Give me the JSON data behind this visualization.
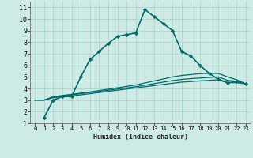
{
  "title": "",
  "xlabel": "Humidex (Indice chaleur)",
  "background_color": "#ceeae4",
  "grid_color": "#aacfca",
  "line_color": "#006b6b",
  "xlim": [
    -0.5,
    23.5
  ],
  "ylim": [
    1,
    11.5
  ],
  "xticks": [
    0,
    1,
    2,
    3,
    4,
    5,
    6,
    7,
    8,
    9,
    10,
    11,
    12,
    13,
    14,
    15,
    16,
    17,
    18,
    19,
    20,
    21,
    22,
    23
  ],
  "yticks": [
    1,
    2,
    3,
    4,
    5,
    6,
    7,
    8,
    9,
    10,
    11
  ],
  "curves": [
    {
      "x": [
        1,
        2,
        3,
        4,
        5,
        6,
        7,
        8,
        9,
        10,
        11,
        12,
        13,
        14,
        15,
        16,
        17,
        18,
        19,
        20,
        21,
        22,
        23
      ],
      "y": [
        1.5,
        3.0,
        3.3,
        3.3,
        5.0,
        6.5,
        7.2,
        7.9,
        8.5,
        8.65,
        8.8,
        10.8,
        10.2,
        9.6,
        9.0,
        7.2,
        6.8,
        6.0,
        5.3,
        4.8,
        4.5,
        4.6,
        4.4
      ],
      "marker": "D",
      "markersize": 2.2,
      "linewidth": 1.2
    },
    {
      "x": [
        0,
        1,
        2,
        3,
        4,
        5,
        6,
        7,
        8,
        9,
        10,
        11,
        12,
        13,
        14,
        15,
        16,
        17,
        18,
        19,
        20,
        21,
        22,
        23
      ],
      "y": [
        3.0,
        3.0,
        3.2,
        3.3,
        3.35,
        3.45,
        3.55,
        3.65,
        3.75,
        3.85,
        3.95,
        4.05,
        4.15,
        4.25,
        4.35,
        4.45,
        4.55,
        4.6,
        4.65,
        4.7,
        4.75,
        4.5,
        4.5,
        4.4
      ],
      "marker": null,
      "markersize": 0,
      "linewidth": 0.9
    },
    {
      "x": [
        0,
        1,
        2,
        3,
        4,
        5,
        6,
        7,
        8,
        9,
        10,
        11,
        12,
        13,
        14,
        15,
        16,
        17,
        18,
        19,
        20,
        21,
        22,
        23
      ],
      "y": [
        3.0,
        3.0,
        3.25,
        3.35,
        3.45,
        3.55,
        3.65,
        3.75,
        3.85,
        3.95,
        4.05,
        4.15,
        4.28,
        4.42,
        4.55,
        4.68,
        4.78,
        4.85,
        4.9,
        4.95,
        5.0,
        4.7,
        4.62,
        4.4
      ],
      "marker": null,
      "markersize": 0,
      "linewidth": 0.9
    },
    {
      "x": [
        0,
        1,
        2,
        3,
        4,
        5,
        6,
        7,
        8,
        9,
        10,
        11,
        12,
        13,
        14,
        15,
        16,
        17,
        18,
        19,
        20,
        21,
        22,
        23
      ],
      "y": [
        3.0,
        3.0,
        3.3,
        3.4,
        3.5,
        3.6,
        3.7,
        3.82,
        3.94,
        4.06,
        4.18,
        4.3,
        4.48,
        4.65,
        4.82,
        5.0,
        5.12,
        5.2,
        5.28,
        5.3,
        5.3,
        5.0,
        4.75,
        4.4
      ],
      "marker": null,
      "markersize": 0,
      "linewidth": 0.9
    }
  ]
}
